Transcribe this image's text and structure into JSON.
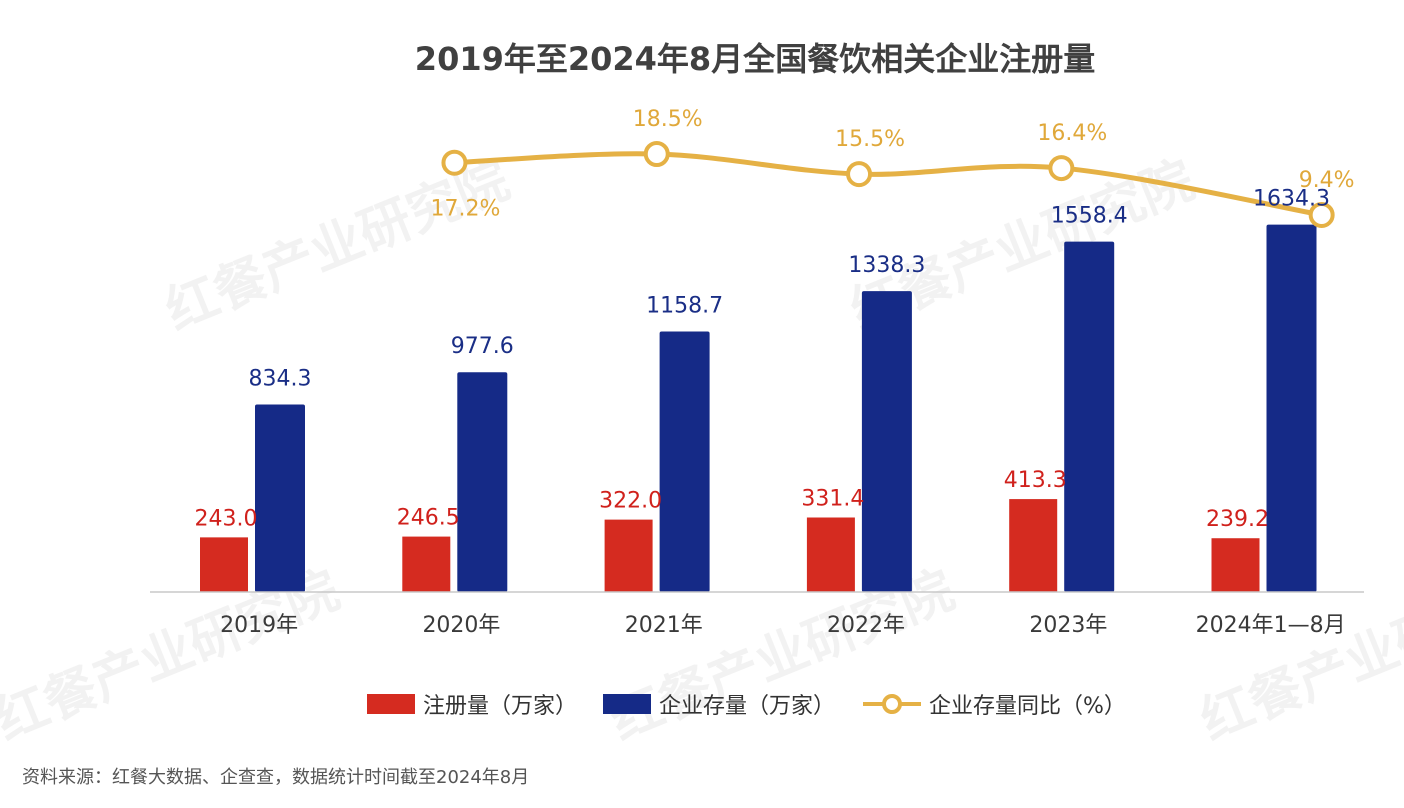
{
  "title": "2019年至2024年8月全国餐饮相关企业注册量",
  "source": "资料来源：红餐大数据、企查查，数据统计时间截至2024年8月",
  "watermark": "红餐产业研究院",
  "colors": {
    "registrations": "#d52b20",
    "stock": "#152a87",
    "yoy": "#e5b145"
  },
  "chart_data": {
    "type": "bar",
    "categories": [
      "2019年",
      "2020年",
      "2021年",
      "2022年",
      "2023年",
      "2024年1—8月"
    ],
    "series": [
      {
        "name": "注册量（万家）",
        "type": "bar",
        "values": [
          243.0,
          246.5,
          322.0,
          331.4,
          413.3,
          239.2
        ],
        "labels": [
          "243.0",
          "246.5",
          "322.0",
          "331.4",
          "413.3",
          "239.2"
        ]
      },
      {
        "name": "企业存量（万家）",
        "type": "bar",
        "values": [
          834.3,
          977.6,
          1158.7,
          1338.3,
          1558.4,
          1634.3
        ],
        "labels": [
          "834.3",
          "977.6",
          "1158.7",
          "1338.3",
          "1558.4",
          "1634.3"
        ]
      },
      {
        "name": "企业存量同比（%）",
        "type": "line",
        "values": [
          null,
          17.2,
          18.5,
          15.5,
          16.4,
          9.4
        ],
        "labels": [
          "",
          "17.2%",
          "18.5%",
          "15.5%",
          "16.4%",
          "9.4%"
        ]
      }
    ],
    "legend_position": "bottom",
    "grid": false
  }
}
